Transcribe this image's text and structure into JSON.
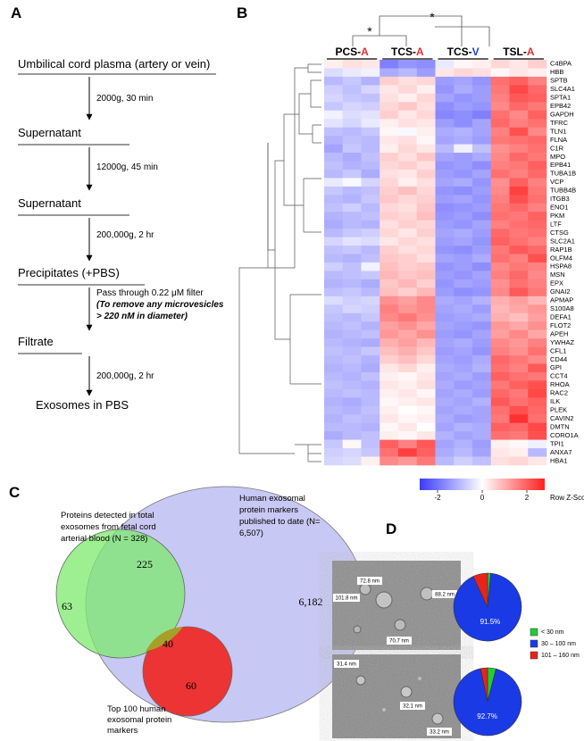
{
  "panel_labels": [
    "A",
    "B",
    "C",
    "D"
  ],
  "flow": {
    "steps": [
      "Umbilical cord plasma (artery or vein)",
      "Supernatant",
      "Supernatant",
      "Precipitates (+PBS)",
      "Filtrate",
      "Exosomes in PBS"
    ],
    "conditions": [
      "2000g, 30 min",
      "12000g, 45 min",
      "200,000g, 2 hr",
      [
        "Pass through 0.22 μM filter",
        "(To remove any microvesicles",
        "> 220 nM in diameter)"
      ],
      "200,000g, 2 hr"
    ]
  },
  "chart_data": [
    {
      "type": "heatmap",
      "groups": [
        {
          "text": [
            "PCS-",
            "A"
          ],
          "color": "#e03030"
        },
        {
          "text": [
            "TCS-",
            "A"
          ],
          "color": "#e03030"
        },
        {
          "text": [
            "TCS-",
            "V"
          ],
          "color": "#2040d0"
        },
        {
          "text": [
            "TSL-",
            "A"
          ],
          "color": "#e03030"
        }
      ],
      "significance": [
        "*",
        "*"
      ],
      "rows": [
        "C4BPA",
        "HBB",
        "SPTB",
        "SLC4A1",
        "SPTA1",
        "EPB42",
        "GAPDH",
        "TFRC",
        "TLN1",
        "FLNA",
        "C1R",
        "MPO",
        "EPB41",
        "TUBA1B",
        "VCP",
        "TUBB4B",
        "ITGB3",
        "ENO1",
        "PKM",
        "LTF",
        "CTSG",
        "SLC2A1",
        "RAP1B",
        "OLFM4",
        "HSPA8",
        "MSN",
        "EPX",
        "GNAI2",
        "APMAP",
        "S100A8",
        "DEFA1",
        "FLOT2",
        "APEH",
        "YWHAZ",
        "CFL1",
        "CD44",
        "GPI",
        "CCT4",
        "RHOA",
        "RAC2",
        "ILK",
        "PLEK",
        "CAVIN2",
        "DMTN",
        "CORO1A",
        "TPI1",
        "ANXA7",
        "HBA1"
      ],
      "values": [
        [
          0.2,
          0.4,
          0.3,
          -1.8,
          -1.5,
          -1.6,
          -0.3,
          0.1,
          0.2,
          0.5,
          0.3,
          0.6
        ],
        [
          -0.5,
          -0.3,
          -0.2,
          -1.2,
          -1.0,
          -1.4,
          0.3,
          0.5,
          0.4,
          0.1,
          0.3,
          0.2
        ],
        [
          -1.0,
          -0.8,
          -1.1,
          0.6,
          0.4,
          0.5,
          -1.4,
          -1.3,
          -1.5,
          1.8,
          2.0,
          1.6
        ],
        [
          -0.7,
          -0.9,
          -0.6,
          0.3,
          0.5,
          0.2,
          -1.5,
          -1.2,
          -1.4,
          1.7,
          2.3,
          1.9
        ],
        [
          -0.6,
          -0.8,
          -0.9,
          0.4,
          0.2,
          0.5,
          -1.3,
          -1.5,
          -1.4,
          1.6,
          2.1,
          2.0
        ],
        [
          -0.8,
          -0.6,
          -0.7,
          0.5,
          0.7,
          0.4,
          -1.6,
          -1.4,
          -1.5,
          1.5,
          1.9,
          1.7
        ],
        [
          -0.2,
          -0.5,
          -0.4,
          0.6,
          0.3,
          0.5,
          -1.7,
          -1.6,
          -1.8,
          1.8,
          1.5,
          2.0
        ],
        [
          -0.4,
          -0.6,
          -0.3,
          0.2,
          0.4,
          0.3,
          -1.4,
          -1.6,
          -1.3,
          1.9,
          1.6,
          1.8
        ],
        [
          -0.9,
          -1.0,
          -0.8,
          0.1,
          -0.1,
          0.2,
          -1.2,
          -1.1,
          -1.3,
          1.6,
          2.2,
          1.5
        ],
        [
          -1.1,
          -0.9,
          -1.0,
          0.3,
          0.4,
          0.1,
          -1.3,
          -1.2,
          -1.4,
          1.7,
          1.8,
          1.9
        ],
        [
          -1.3,
          -0.8,
          -1.0,
          0.2,
          0.5,
          0.3,
          -1.0,
          -0.2,
          -0.9,
          1.4,
          1.6,
          1.8
        ],
        [
          -1.0,
          -1.2,
          -0.9,
          0.6,
          0.4,
          0.7,
          -1.3,
          -1.4,
          -1.2,
          1.5,
          1.9,
          1.7
        ],
        [
          -0.9,
          -1.1,
          -1.0,
          0.5,
          0.6,
          0.4,
          -1.5,
          -1.4,
          -1.6,
          1.6,
          1.7,
          2.0
        ],
        [
          -1.0,
          -0.8,
          -1.2,
          0.4,
          0.3,
          0.6,
          -1.4,
          -1.5,
          -1.3,
          1.8,
          1.6,
          1.9
        ],
        [
          -0.3,
          -0.1,
          -0.6,
          0.5,
          0.2,
          0.4,
          -1.3,
          -1.2,
          -1.5,
          1.4,
          2.0,
          1.6
        ],
        [
          -0.8,
          -1.0,
          -0.9,
          0.6,
          0.8,
          0.5,
          -1.5,
          -1.6,
          -1.4,
          1.5,
          2.4,
          1.7
        ],
        [
          -1.0,
          -1.1,
          -0.8,
          0.7,
          0.5,
          0.6,
          -1.4,
          -1.3,
          -1.5,
          1.6,
          2.2,
          1.8
        ],
        [
          -0.9,
          -0.7,
          -1.0,
          0.5,
          0.4,
          0.7,
          -1.6,
          -1.5,
          -1.4,
          1.7,
          1.9,
          1.6
        ],
        [
          -1.1,
          -1.0,
          -0.9,
          0.6,
          0.5,
          0.8,
          -1.5,
          -1.4,
          -1.6,
          1.8,
          1.7,
          2.0
        ],
        [
          -1.2,
          -1.0,
          -1.1,
          0.4,
          0.6,
          0.5,
          -1.4,
          -1.5,
          -1.3,
          1.6,
          1.8,
          1.9
        ],
        [
          -1.0,
          -0.8,
          -0.7,
          0.5,
          0.3,
          0.6,
          -1.3,
          -1.2,
          -1.4,
          1.9,
          1.7,
          1.8
        ],
        [
          -0.6,
          -0.4,
          -0.5,
          0.3,
          0.5,
          0.4,
          -1.4,
          -1.3,
          -1.5,
          2.0,
          1.8,
          1.6
        ],
        [
          -0.9,
          -0.8,
          -1.0,
          0.6,
          0.4,
          0.5,
          -1.5,
          -1.6,
          -1.4,
          1.7,
          2.1,
          1.9
        ],
        [
          -1.0,
          -1.1,
          -0.9,
          0.7,
          0.6,
          0.4,
          -1.3,
          -1.4,
          -1.2,
          1.8,
          1.6,
          2.2
        ],
        [
          -0.7,
          -0.9,
          -0.2,
          0.8,
          0.6,
          0.7,
          -1.5,
          -1.4,
          -1.6,
          1.5,
          1.7,
          1.6
        ],
        [
          -1.0,
          -0.9,
          -0.8,
          0.9,
          0.7,
          0.8,
          -1.4,
          -1.5,
          -1.3,
          1.6,
          1.9,
          1.5
        ],
        [
          -1.1,
          -1.0,
          -1.2,
          0.7,
          0.9,
          0.6,
          -1.5,
          -1.3,
          -1.4,
          1.4,
          1.8,
          1.6
        ],
        [
          -0.9,
          -0.8,
          -1.0,
          0.8,
          0.6,
          0.9,
          -1.4,
          -1.6,
          -1.5,
          1.5,
          2.1,
          1.7
        ],
        [
          -0.5,
          -0.7,
          -0.6,
          1.4,
          1.2,
          1.5,
          -1.2,
          -1.3,
          -1.1,
          1.0,
          1.2,
          0.9
        ],
        [
          -0.8,
          -0.6,
          -0.7,
          1.6,
          1.3,
          1.5,
          -1.3,
          -1.2,
          -1.4,
          0.9,
          1.1,
          1.3
        ],
        [
          -0.9,
          -1.0,
          -0.8,
          1.5,
          1.7,
          1.4,
          -1.4,
          -1.3,
          -1.2,
          1.0,
          0.8,
          1.2
        ],
        [
          -1.0,
          -0.9,
          -1.1,
          1.2,
          1.4,
          1.1,
          -1.3,
          -1.4,
          -1.5,
          1.3,
          1.1,
          1.4
        ],
        [
          -1.1,
          -1.0,
          -0.9,
          1.3,
          1.1,
          1.4,
          -1.4,
          -1.5,
          -1.3,
          1.2,
          1.5,
          1.1
        ],
        [
          -1.0,
          -1.1,
          -1.2,
          1.0,
          1.2,
          0.9,
          -1.3,
          -1.2,
          -1.4,
          1.5,
          1.3,
          1.6
        ],
        [
          -0.9,
          -1.0,
          -0.8,
          0.8,
          1.0,
          0.7,
          -1.4,
          -1.3,
          -1.5,
          1.6,
          1.4,
          1.8
        ],
        [
          -1.0,
          -0.9,
          -1.1,
          0.6,
          0.8,
          0.5,
          -1.3,
          -1.4,
          -1.2,
          1.9,
          1.7,
          1.5
        ],
        [
          -1.1,
          -1.0,
          -1.2,
          0.3,
          0.5,
          0.2,
          -1.2,
          -1.3,
          -1.1,
          1.8,
          1.6,
          2.1
        ],
        [
          -1.0,
          -1.1,
          -0.9,
          0.2,
          0.1,
          0.3,
          -1.3,
          -1.2,
          -1.4,
          2.0,
          1.8,
          1.7
        ],
        [
          -0.9,
          -1.0,
          -1.1,
          0.3,
          0.2,
          0.4,
          -1.2,
          -1.4,
          -1.3,
          1.7,
          2.0,
          2.2
        ],
        [
          -1.0,
          -0.9,
          -1.0,
          0.2,
          0.3,
          0.1,
          -1.3,
          -1.2,
          -1.4,
          1.9,
          1.7,
          2.3
        ],
        [
          -1.1,
          -1.2,
          -1.0,
          0.1,
          0.2,
          0.3,
          -1.2,
          -1.3,
          -1.1,
          2.1,
          1.8,
          2.0
        ],
        [
          -1.0,
          -1.1,
          -0.9,
          0.2,
          0.0,
          0.1,
          -1.3,
          -1.2,
          -1.3,
          1.8,
          2.2,
          1.9
        ],
        [
          -1.1,
          -0.9,
          -1.0,
          0.3,
          0.1,
          0.2,
          -1.2,
          -1.4,
          -1.3,
          1.7,
          2.6,
          1.8
        ],
        [
          -1.0,
          -1.0,
          -1.1,
          0.1,
          0.3,
          0.0,
          -1.3,
          -1.1,
          -1.2,
          2.0,
          1.9,
          2.3
        ],
        [
          -1.2,
          -1.0,
          -0.9,
          0.2,
          0.1,
          0.3,
          -1.1,
          -1.3,
          -1.2,
          1.8,
          1.7,
          2.2
        ],
        [
          -0.8,
          0.1,
          -0.9,
          2.0,
          1.6,
          2.1,
          -1.3,
          -1.1,
          -1.4,
          0.2,
          0.1,
          -0.2
        ],
        [
          -0.7,
          -0.6,
          -0.8,
          1.8,
          2.4,
          2.0,
          -1.2,
          -1.0,
          -1.3,
          0.3,
          0.2,
          -1.0
        ],
        [
          -0.6,
          -0.5,
          0.2,
          1.5,
          1.3,
          1.7,
          -1.0,
          -0.7,
          -0.9,
          0.4,
          0.5,
          0.3
        ]
      ],
      "colorbar": {
        "label": "Row Z-Score",
        "lim": [
          -2.8,
          2.8
        ],
        "ticks": [
          -2,
          0,
          2
        ],
        "colors": [
          "#3a3aff",
          "#ffffff",
          "#ff2020"
        ]
      }
    },
    {
      "type": "pie",
      "categories": [
        "< 30 nm",
        "30 – 100 nm",
        "101 – 160 nm"
      ],
      "colors": [
        "#22cc33",
        "#1a3ae6",
        "#e8231a"
      ],
      "pies": [
        {
          "values": [
            1.5,
            91.5,
            7.0
          ],
          "value_labels": [
            null,
            "91.5%",
            null
          ]
        },
        {
          "values": [
            4.0,
            92.7,
            3.3
          ],
          "value_labels": [
            null,
            "92.7%",
            null
          ]
        }
      ]
    }
  ],
  "venn": {
    "sets": [
      [
        "Human exosomal",
        "protein markers",
        "published to date (N=",
        "6,507)"
      ],
      [
        "Proteins detected in total",
        "exosomes from fetal cord",
        "arterial blood (N = 328)"
      ],
      [
        "Top 100 human",
        "exosomal protein",
        "markers"
      ]
    ],
    "regions": [
      "63",
      "225",
      "40",
      "60",
      "6,182"
    ]
  },
  "micrographs": [
    [
      "101.8 nm",
      "72.8 nm",
      "88.2 nm",
      "70.7 nm"
    ],
    [
      "31.4 nm",
      "32.1 nm",
      "33.2 nm"
    ]
  ]
}
